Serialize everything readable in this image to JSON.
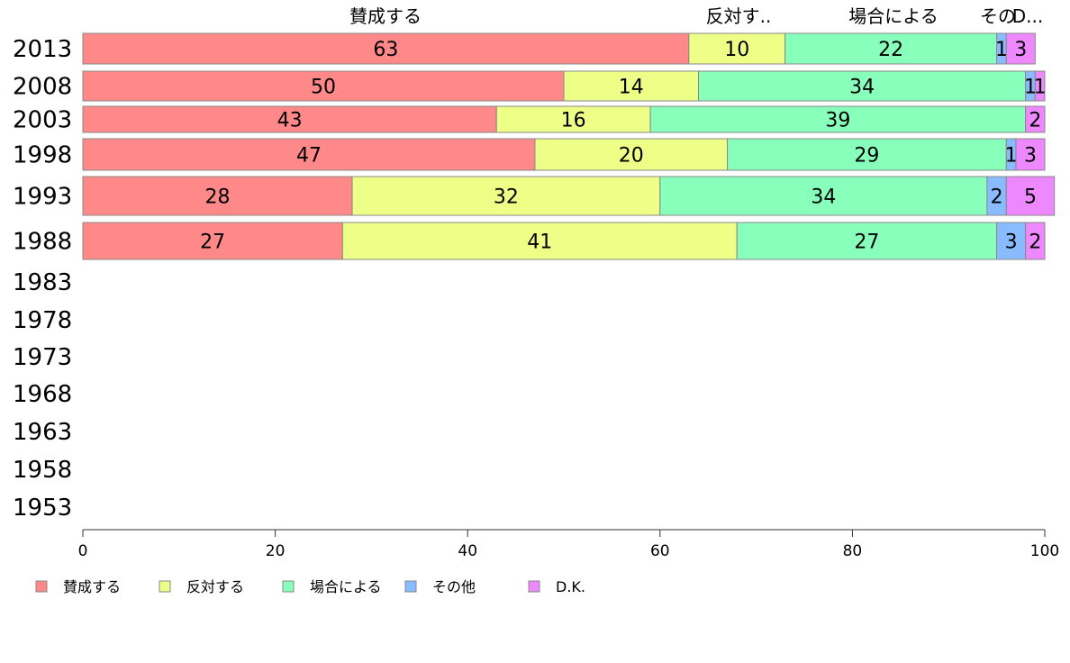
{
  "chart_data": {
    "type": "bar",
    "orientation": "horizontal",
    "stacked": true,
    "title": "",
    "xlabel": "",
    "ylabel": "",
    "xlim": [
      0,
      100
    ],
    "xticks": [
      0,
      20,
      40,
      60,
      80,
      100
    ],
    "grid": false,
    "legend_position": "bottom-left",
    "categories": [
      "2013",
      "2008",
      "2003",
      "1998",
      "1993",
      "1988",
      "1983",
      "1978",
      "1973",
      "1968",
      "1963",
      "1958",
      "1953"
    ],
    "top_labels": [
      "賛成する",
      "反対す..",
      "場合による",
      "その",
      "D..."
    ],
    "series": [
      {
        "name": "賛成する",
        "color": "#ff8888",
        "values": [
          63,
          50,
          43,
          47,
          28,
          27,
          null,
          null,
          null,
          null,
          null,
          null,
          null
        ]
      },
      {
        "name": "反対する",
        "color": "#eeff88",
        "values": [
          10,
          14,
          16,
          20,
          32,
          41,
          null,
          null,
          null,
          null,
          null,
          null,
          null
        ]
      },
      {
        "name": "場合による",
        "color": "#88ffbb",
        "values": [
          22,
          34,
          39,
          29,
          34,
          27,
          null,
          null,
          null,
          null,
          null,
          null,
          null
        ]
      },
      {
        "name": "その他",
        "color": "#88bbff",
        "values": [
          1,
          1,
          0,
          1,
          2,
          3,
          null,
          null,
          null,
          null,
          null,
          null,
          null
        ]
      },
      {
        "name": "D.K.",
        "color": "#ee88ff",
        "values": [
          3,
          1,
          2,
          3,
          5,
          2,
          null,
          null,
          null,
          null,
          null,
          null,
          null
        ]
      }
    ]
  }
}
